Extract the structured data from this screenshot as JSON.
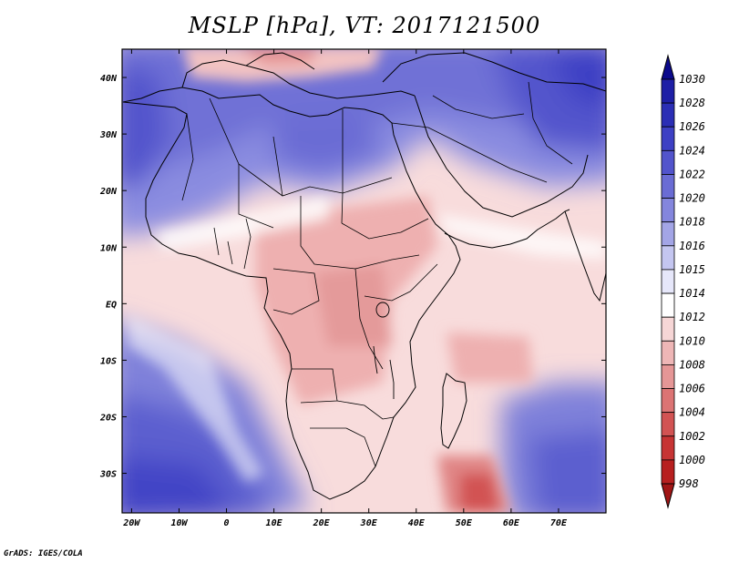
{
  "title": "MSLP [hPa], VT: 2017121500",
  "credit": "GrADS: IGES/COLA",
  "map": {
    "variable": "MSLP",
    "units": "hPa",
    "valid_time": "2017121500",
    "lon_range": [
      -22,
      80
    ],
    "lat_range": [
      -37,
      45
    ],
    "lon_ticks": [
      "20W",
      "10W",
      "0",
      "10E",
      "20E",
      "30E",
      "40E",
      "50E",
      "60E",
      "70E"
    ],
    "lat_ticks": [
      "40N",
      "30N",
      "20N",
      "10N",
      "EQ",
      "10S",
      "20S",
      "30S"
    ]
  },
  "colorbar": {
    "levels": [
      "1030",
      "1028",
      "1026",
      "1024",
      "1022",
      "1020",
      "1018",
      "1016",
      "1015",
      "1014",
      "1012",
      "1010",
      "1008",
      "1006",
      "1004",
      "1002",
      "1000",
      "998"
    ],
    "colors": [
      "#0c0a8c",
      "#1e1fa6",
      "#2b2eb5",
      "#3d40c4",
      "#5254cc",
      "#6a6cd4",
      "#8486dd",
      "#a3a5e6",
      "#c4c6f0",
      "#e6e7fa",
      "#ffffff",
      "#f6d6d6",
      "#eeb6b6",
      "#e59696",
      "#dc7474",
      "#d25353",
      "#c73434",
      "#b71f1f",
      "#a01515"
    ]
  }
}
